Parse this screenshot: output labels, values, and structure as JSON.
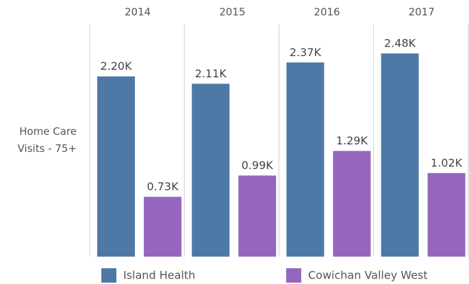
{
  "chart_data": {
    "type": "bar",
    "y_label": "Home Care Visits - 75+",
    "categories": [
      "2014",
      "2015",
      "2016",
      "2017"
    ],
    "series": [
      {
        "name": "Island Health",
        "color": "#4e79a7",
        "values": [
          2200,
          2110,
          2370,
          2480
        ],
        "value_labels": [
          "2.20K",
          "2.11K",
          "2.37K",
          "2.48K"
        ]
      },
      {
        "name": "Cowichan Valley West",
        "color": "#9467bd",
        "values": [
          730,
          990,
          1290,
          1020
        ],
        "value_labels": [
          "0.73K",
          "0.99K",
          "1.29K",
          "1.02K"
        ]
      }
    ],
    "ylim": [
      0,
      2840
    ]
  }
}
